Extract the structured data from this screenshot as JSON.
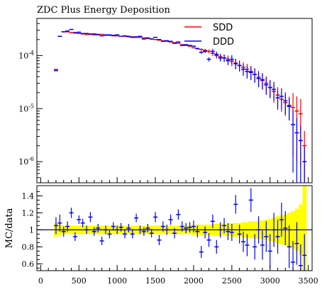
{
  "chart_data": [
    {
      "type": "scatter",
      "title": "ZDC Plus Energy Deposition",
      "xlim": [
        -50,
        3550
      ],
      "ylim": [
        4e-07,
        0.0005
      ],
      "yscale": "log",
      "ytick_labels": [
        "10^{-6}",
        "10^{-5}",
        "10^{-4}"
      ],
      "legend_position": "top-right",
      "series": [
        {
          "name": "SDD",
          "color": "#ff0000",
          "x": [
            200,
            250,
            300,
            350,
            400,
            450,
            500,
            550,
            600,
            650,
            700,
            750,
            800,
            850,
            900,
            950,
            1000,
            1050,
            1100,
            1150,
            1200,
            1250,
            1300,
            1350,
            1400,
            1450,
            1500,
            1550,
            1600,
            1650,
            1700,
            1750,
            1800,
            1850,
            1900,
            1950,
            2000,
            2050,
            2100,
            2150,
            2200,
            2250,
            2300,
            2350,
            2400,
            2450,
            2500,
            2550,
            2600,
            2650,
            2700,
            2750,
            2800,
            2850,
            2900,
            2950,
            3000,
            3050,
            3100,
            3150,
            3200,
            3250,
            3300,
            3350,
            3400,
            3450
          ],
          "y": [
            5.5e-05,
            0.00023,
            0.00028,
            0.00028,
            0.00027,
            0.000265,
            0.00026,
            0.000255,
            0.00025,
            0.00025,
            0.000245,
            0.000245,
            0.00025,
            0.00024,
            0.00024,
            0.000235,
            0.000235,
            0.00023,
            0.00023,
            0.000225,
            0.000225,
            0.00022,
            0.00022,
            0.000215,
            0.00021,
            0.000205,
            0.0002,
            0.000195,
            0.00019,
            0.000185,
            0.00018,
            0.000175,
            0.00017,
            0.00016,
            0.000155,
            0.00015,
            0.00014,
            0.000135,
            0.00013,
            0.000125,
            0.00012,
            0.00011,
            0.0001,
            9.5e-05,
            9e-05,
            8.5e-05,
            7.8e-05,
            7.2e-05,
            6.5e-05,
            6e-05,
            5.5e-05,
            5e-05,
            4.4e-05,
            3.9e-05,
            3.4e-05,
            3e-05,
            2.5e-05,
            2.1e-05,
            1.8e-05,
            1.5e-05,
            1.3e-05,
            1.15e-05,
            1.05e-05,
            9e-06,
            8e-06,
            2e-06
          ]
        },
        {
          "name": "DDD",
          "color": "#0000ff",
          "x": [
            200,
            250,
            300,
            350,
            400,
            450,
            500,
            550,
            600,
            650,
            700,
            750,
            800,
            850,
            900,
            950,
            1000,
            1050,
            1100,
            1150,
            1200,
            1250,
            1300,
            1350,
            1400,
            1450,
            1500,
            1550,
            1600,
            1650,
            1700,
            1750,
            1800,
            1850,
            1900,
            1950,
            2000,
            2050,
            2100,
            2150,
            2200,
            2250,
            2300,
            2350,
            2400,
            2450,
            2500,
            2550,
            2600,
            2650,
            2700,
            2750,
            2800,
            2850,
            2900,
            2950,
            3000,
            3050,
            3100,
            3150,
            3200,
            3250,
            3300,
            3350,
            3400,
            3450
          ],
          "y": [
            5.2e-05,
            0.00023,
            0.00028,
            0.00029,
            0.00031,
            0.00027,
            0.000275,
            0.00026,
            0.00026,
            0.000255,
            0.000255,
            0.00025,
            0.000235,
            0.000245,
            0.000245,
            0.00024,
            0.000245,
            0.00023,
            0.000235,
            0.00023,
            0.00022,
            0.000225,
            0.00023,
            0.000205,
            0.000215,
            0.000205,
            0.00022,
            0.0002,
            0.000185,
            0.00019,
            0.000185,
            0.00017,
            0.00018,
            0.000155,
            0.00016,
            0.000155,
            0.00015,
            0.000135,
            0.000115,
            0.00012,
            8.5e-05,
            0.00012,
            0.000105,
            9e-05,
            9e-05,
            8e-05,
            8.5e-05,
            7e-05,
            6.5e-05,
            5.5e-05,
            5e-05,
            4.8e-05,
            4.4e-05,
            3.7e-05,
            3.5e-05,
            2.8e-05,
            2.5e-05,
            2.3e-05,
            1.6e-05,
            1.7e-05,
            1.4e-05,
            1.1e-05,
            5e-06,
            3.5e-06,
            2.5e-06,
            1e-06
          ]
        }
      ]
    },
    {
      "type": "scatter",
      "ylabel": "MC/data",
      "xlim": [
        -50,
        3550
      ],
      "ylim": [
        0.52,
        1.52
      ],
      "xtick_labels": [
        "0",
        "500",
        "1000",
        "1500",
        "2000",
        "2500",
        "3000",
        "3500"
      ],
      "ytick_labels": [
        "0.6",
        "0.8",
        "1",
        "1.2",
        "1.4"
      ],
      "reference_line": 1.0,
      "band_color": "#ffff00",
      "band": {
        "x": [
          200,
          250,
          300,
          350,
          400,
          450,
          500,
          550,
          600,
          650,
          700,
          750,
          800,
          850,
          900,
          950,
          1000,
          1050,
          1100,
          1150,
          1200,
          1250,
          1300,
          1350,
          1400,
          1450,
          1500,
          1550,
          1600,
          1650,
          1700,
          1750,
          1800,
          1850,
          1900,
          1950,
          2000,
          2050,
          2100,
          2150,
          2200,
          2250,
          2300,
          2350,
          2400,
          2450,
          2500,
          2550,
          2600,
          2650,
          2700,
          2750,
          2800,
          2850,
          2900,
          2950,
          3000,
          3050,
          3100,
          3150,
          3200,
          3250,
          3300,
          3350,
          3400,
          3450
        ],
        "half_width": [
          0.08,
          0.06,
          0.05,
          0.05,
          0.05,
          0.05,
          0.05,
          0.05,
          0.05,
          0.05,
          0.05,
          0.05,
          0.05,
          0.05,
          0.05,
          0.05,
          0.05,
          0.05,
          0.05,
          0.05,
          0.05,
          0.05,
          0.05,
          0.05,
          0.05,
          0.05,
          0.05,
          0.05,
          0.05,
          0.05,
          0.05,
          0.05,
          0.05,
          0.05,
          0.05,
          0.05,
          0.06,
          0.06,
          0.06,
          0.06,
          0.06,
          0.07,
          0.07,
          0.07,
          0.07,
          0.07,
          0.08,
          0.08,
          0.08,
          0.09,
          0.09,
          0.1,
          0.1,
          0.11,
          0.11,
          0.12,
          0.13,
          0.14,
          0.16,
          0.17,
          0.18,
          0.2,
          0.22,
          0.25,
          0.3,
          0.52
        ]
      },
      "points": {
        "color": "#0000ff",
        "x": [
          200,
          250,
          300,
          350,
          400,
          450,
          500,
          550,
          600,
          650,
          700,
          750,
          800,
          850,
          900,
          950,
          1000,
          1050,
          1100,
          1150,
          1200,
          1250,
          1300,
          1350,
          1400,
          1450,
          1500,
          1550,
          1600,
          1650,
          1700,
          1750,
          1800,
          1850,
          1900,
          1950,
          2000,
          2050,
          2100,
          2150,
          2200,
          2250,
          2300,
          2350,
          2400,
          2450,
          2500,
          2550,
          2600,
          2650,
          2700,
          2750,
          2800,
          2850,
          2900,
          2950,
          3000,
          3050,
          3100,
          3150,
          3200,
          3250,
          3300,
          3350,
          3400,
          3450
        ],
        "y": [
          1.05,
          1.08,
          0.98,
          1.04,
          1.2,
          0.92,
          1.12,
          1.08,
          1.0,
          1.15,
          0.98,
          1.02,
          0.87,
          1.0,
          0.95,
          1.04,
          1.0,
          1.03,
          0.95,
          1.02,
          0.95,
          1.14,
          1.0,
          0.98,
          1.02,
          0.96,
          1.15,
          0.88,
          1.04,
          1.0,
          1.12,
          0.96,
          1.18,
          1.04,
          1.02,
          1.03,
          1.04,
          0.98,
          0.74,
          0.97,
          0.88,
          1.1,
          0.8,
          1.0,
          1.05,
          0.98,
          0.97,
          1.3,
          0.95,
          0.86,
          0.82,
          1.35,
          0.8,
          1.0,
          0.82,
          0.92,
          0.75,
          1.0,
          0.92,
          1.12,
          1.02,
          0.8,
          0.62,
          0.84,
          0.58,
          0.7
        ],
        "err": [
          0.1,
          0.1,
          0.06,
          0.06,
          0.06,
          0.05,
          0.05,
          0.05,
          0.05,
          0.06,
          0.05,
          0.05,
          0.05,
          0.05,
          0.05,
          0.05,
          0.05,
          0.05,
          0.05,
          0.05,
          0.05,
          0.05,
          0.05,
          0.05,
          0.05,
          0.05,
          0.06,
          0.06,
          0.06,
          0.06,
          0.06,
          0.06,
          0.06,
          0.06,
          0.06,
          0.06,
          0.07,
          0.07,
          0.07,
          0.07,
          0.08,
          0.08,
          0.08,
          0.09,
          0.09,
          0.1,
          0.1,
          0.11,
          0.11,
          0.12,
          0.13,
          0.14,
          0.15,
          0.16,
          0.17,
          0.18,
          0.2,
          0.2,
          0.2,
          0.2,
          0.2,
          0.25,
          0.25,
          0.25,
          0.25,
          0.25
        ]
      }
    }
  ]
}
